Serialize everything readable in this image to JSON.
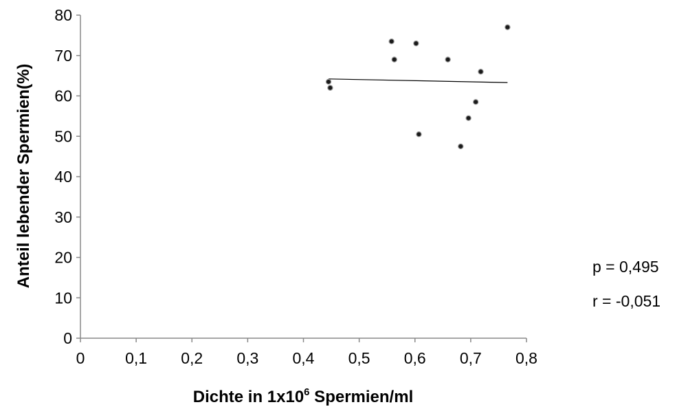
{
  "chart_data": {
    "type": "scatter",
    "xlabel": "Dichte in 1x10",
    "xlabel_sup": "6",
    "xlabel_suffix": " Spermien/ml",
    "ylabel": "Anteil lebender Spermien(%)",
    "xlim": [
      0,
      0.8
    ],
    "ylim": [
      0,
      80
    ],
    "x_ticks": [
      0,
      0.1,
      0.2,
      0.3,
      0.4,
      0.5,
      0.6,
      0.7,
      0.8
    ],
    "x_tick_labels": [
      "0",
      "0,1",
      "0,2",
      "0,3",
      "0,4",
      "0,5",
      "0,6",
      "0,7",
      "0,8"
    ],
    "y_ticks": [
      0,
      10,
      20,
      30,
      40,
      50,
      60,
      70,
      80
    ],
    "y_tick_labels": [
      "0",
      "10",
      "20",
      "30",
      "40",
      "50",
      "60",
      "70",
      "80"
    ],
    "grid": false,
    "points": [
      {
        "x": 0.445,
        "y": 63.5
      },
      {
        "x": 0.448,
        "y": 62.0
      },
      {
        "x": 0.558,
        "y": 73.5
      },
      {
        "x": 0.563,
        "y": 69.0
      },
      {
        "x": 0.602,
        "y": 73.0
      },
      {
        "x": 0.607,
        "y": 50.5
      },
      {
        "x": 0.659,
        "y": 69.0
      },
      {
        "x": 0.682,
        "y": 47.5
      },
      {
        "x": 0.696,
        "y": 54.5
      },
      {
        "x": 0.709,
        "y": 58.5
      },
      {
        "x": 0.718,
        "y": 66.0
      },
      {
        "x": 0.766,
        "y": 77.0
      }
    ],
    "trendline": {
      "x": [
        0.445,
        0.766
      ],
      "y": [
        64.2,
        63.3
      ]
    },
    "annotations": [
      "p = 0,495",
      "r = -0,051"
    ]
  }
}
